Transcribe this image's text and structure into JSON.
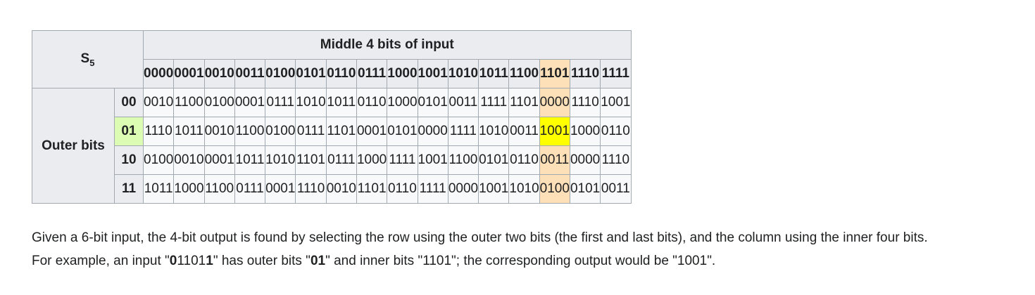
{
  "table": {
    "sbox_base": "S",
    "sbox_sub": "5",
    "middle_header": "Middle 4 bits of input",
    "outer_header": "Outer bits",
    "columns": [
      "0000",
      "0001",
      "0010",
      "0011",
      "0100",
      "0101",
      "0110",
      "0111",
      "1000",
      "1001",
      "1010",
      "1011",
      "1100",
      "1101",
      "1110",
      "1111"
    ],
    "rows": [
      {
        "key": "00",
        "cells": [
          "0010",
          "1100",
          "0100",
          "0001",
          "0111",
          "1010",
          "1011",
          "0110",
          "1000",
          "0101",
          "0011",
          "1111",
          "1101",
          "0000",
          "1110",
          "1001"
        ]
      },
      {
        "key": "01",
        "cells": [
          "1110",
          "1011",
          "0010",
          "1100",
          "0100",
          "0111",
          "1101",
          "0001",
          "0101",
          "0000",
          "1111",
          "1010",
          "0011",
          "1001",
          "1000",
          "0110"
        ]
      },
      {
        "key": "10",
        "cells": [
          "0100",
          "0010",
          "0001",
          "1011",
          "1010",
          "1101",
          "0111",
          "1000",
          "1111",
          "1001",
          "1100",
          "0101",
          "0110",
          "0011",
          "0000",
          "1110"
        ]
      },
      {
        "key": "11",
        "cells": [
          "1011",
          "1000",
          "1100",
          "0111",
          "0001",
          "1110",
          "0010",
          "1101",
          "0110",
          "1111",
          "0000",
          "1001",
          "1010",
          "0100",
          "0101",
          "0011"
        ]
      }
    ],
    "highlight": {
      "row_index": 1,
      "col_index": 13
    },
    "colors": {
      "header_bg": "#eaecf0",
      "cell_bg": "#f8f9fa",
      "highlight_column": "#fddfb8",
      "highlight_row": "#dcfcb4",
      "highlight_cell": "#ffff00",
      "border": "#a2a9b1"
    }
  },
  "caption": {
    "line1": "Given a 6-bit input, the 4-bit output is found by selecting the row using the outer two bits (the first and last bits), and the column using the inner four bits.",
    "l2_a": "For example, an input \"",
    "l2_b1": "0",
    "l2_b2": "1101",
    "l2_b3": "1",
    "l2_c": "\" has outer bits \"",
    "l2_d": "01",
    "l2_e": "\" and inner bits \"1101\"; the corresponding output would be \"1001\"."
  }
}
